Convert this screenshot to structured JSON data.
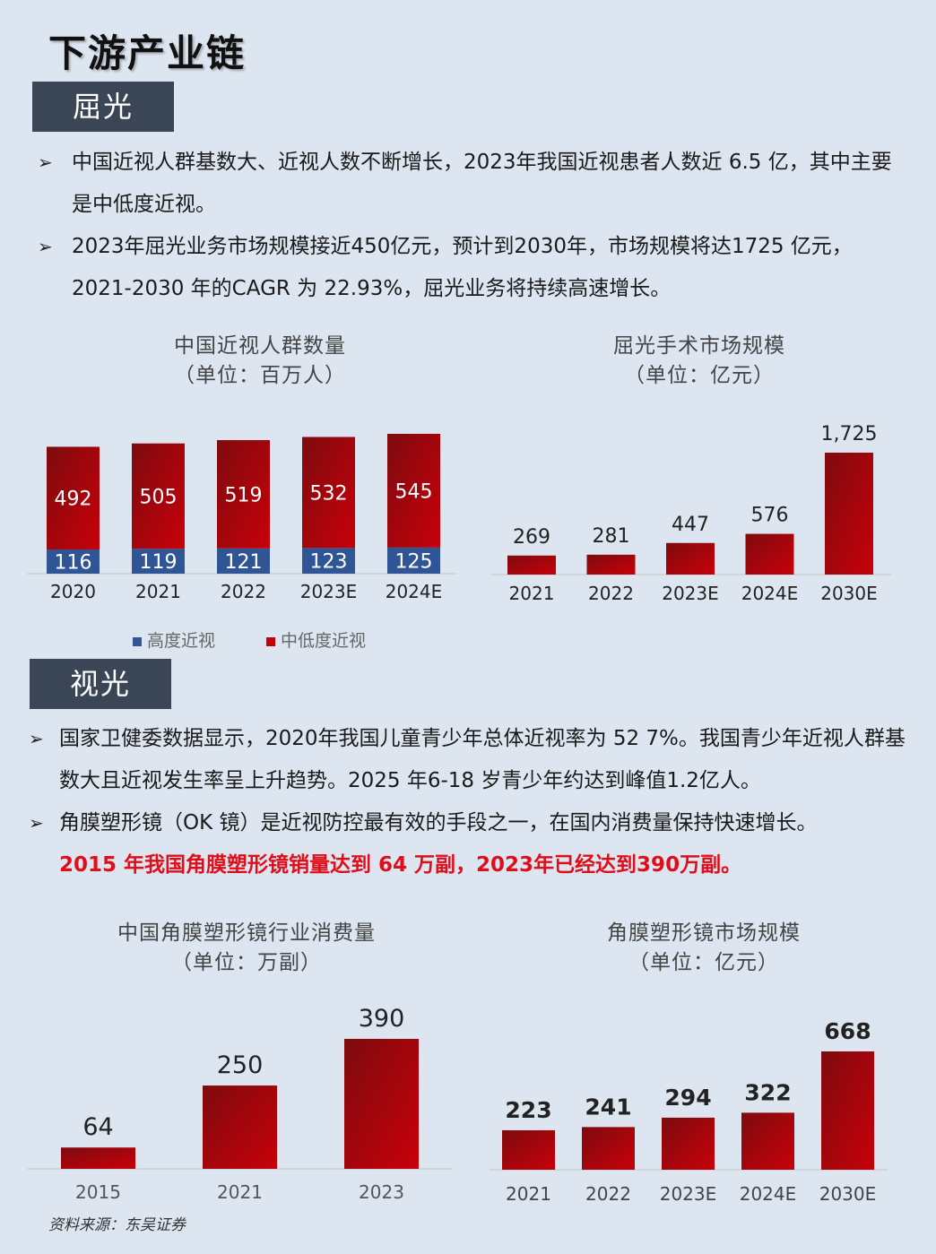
{
  "page": {
    "title": "下游产业链",
    "source": "资料来源：东吴证券"
  },
  "sections": [
    {
      "tag": "屈光",
      "bullets": [
        "中国近视人群基数大、近视人数不断增长，2023年我国近视患者人数近 6.5 亿，其中主要是中低度近视。",
        "2023年屈光业务市场规模接近450亿元，预计到2030年，市场规模将达1725 亿元，2021-2030 年的CAGR 为 22.93%，屈光业务将持续高速增长。"
      ]
    },
    {
      "tag": "视光",
      "bullets": [
        "国家卫健委数据显示，2020年我国儿童青少年总体近视率为 52 7%。我国青少年近视人群基数大且近视发生率呈上升趋势。2025 年6-18 岁青少年约达到峰值1.2亿人。",
        "角膜塑形镜（OK 镜）是近视防控最有效的手段之一，在国内消费量保持快速增长。"
      ],
      "highlight": "2015 年我国角膜塑形镜销量达到 64 万副，2023年已经达到390万副。"
    }
  ],
  "colors": {
    "dark_red": "#7e0b0e",
    "red": "#c8000a",
    "blue": "#2f5597",
    "tag_bg": "#3a4656",
    "background": "#dde6f0"
  },
  "chart_data": [
    {
      "type": "bar",
      "stacked": true,
      "title": "中国近视人群数量",
      "subtitle": "（单位：百万人）",
      "categories": [
        "2020",
        "2021",
        "2022",
        "2023E",
        "2024E"
      ],
      "series": [
        {
          "name": "高度近视",
          "values": [
            116,
            119,
            121,
            123,
            125
          ],
          "color": "#2f5597"
        },
        {
          "name": "中低度近视",
          "values": [
            492,
            505,
            519,
            532,
            545
          ],
          "color": "#c8000a"
        }
      ],
      "legend": "bottom"
    },
    {
      "type": "bar",
      "title": "屈光手术市场规模",
      "subtitle": "（单位：亿元）",
      "categories": [
        "2021",
        "2022",
        "2023E",
        "2024E",
        "2030E"
      ],
      "values": [
        269,
        281,
        447,
        576,
        1725
      ],
      "value_labels": [
        "269",
        "281",
        "447",
        "576",
        "1,725"
      ]
    },
    {
      "type": "bar",
      "title": "中国角膜塑形镜行业消费量",
      "subtitle": "（单位：万副）",
      "categories": [
        "2015",
        "2021",
        "2023"
      ],
      "values": [
        64,
        250,
        390
      ]
    },
    {
      "type": "bar",
      "title": "角膜塑形镜市场规模",
      "subtitle": "（单位：亿元）",
      "categories": [
        "2021",
        "2022",
        "2023E",
        "2024E",
        "2030E"
      ],
      "values": [
        223,
        241,
        294,
        322,
        668
      ]
    }
  ]
}
